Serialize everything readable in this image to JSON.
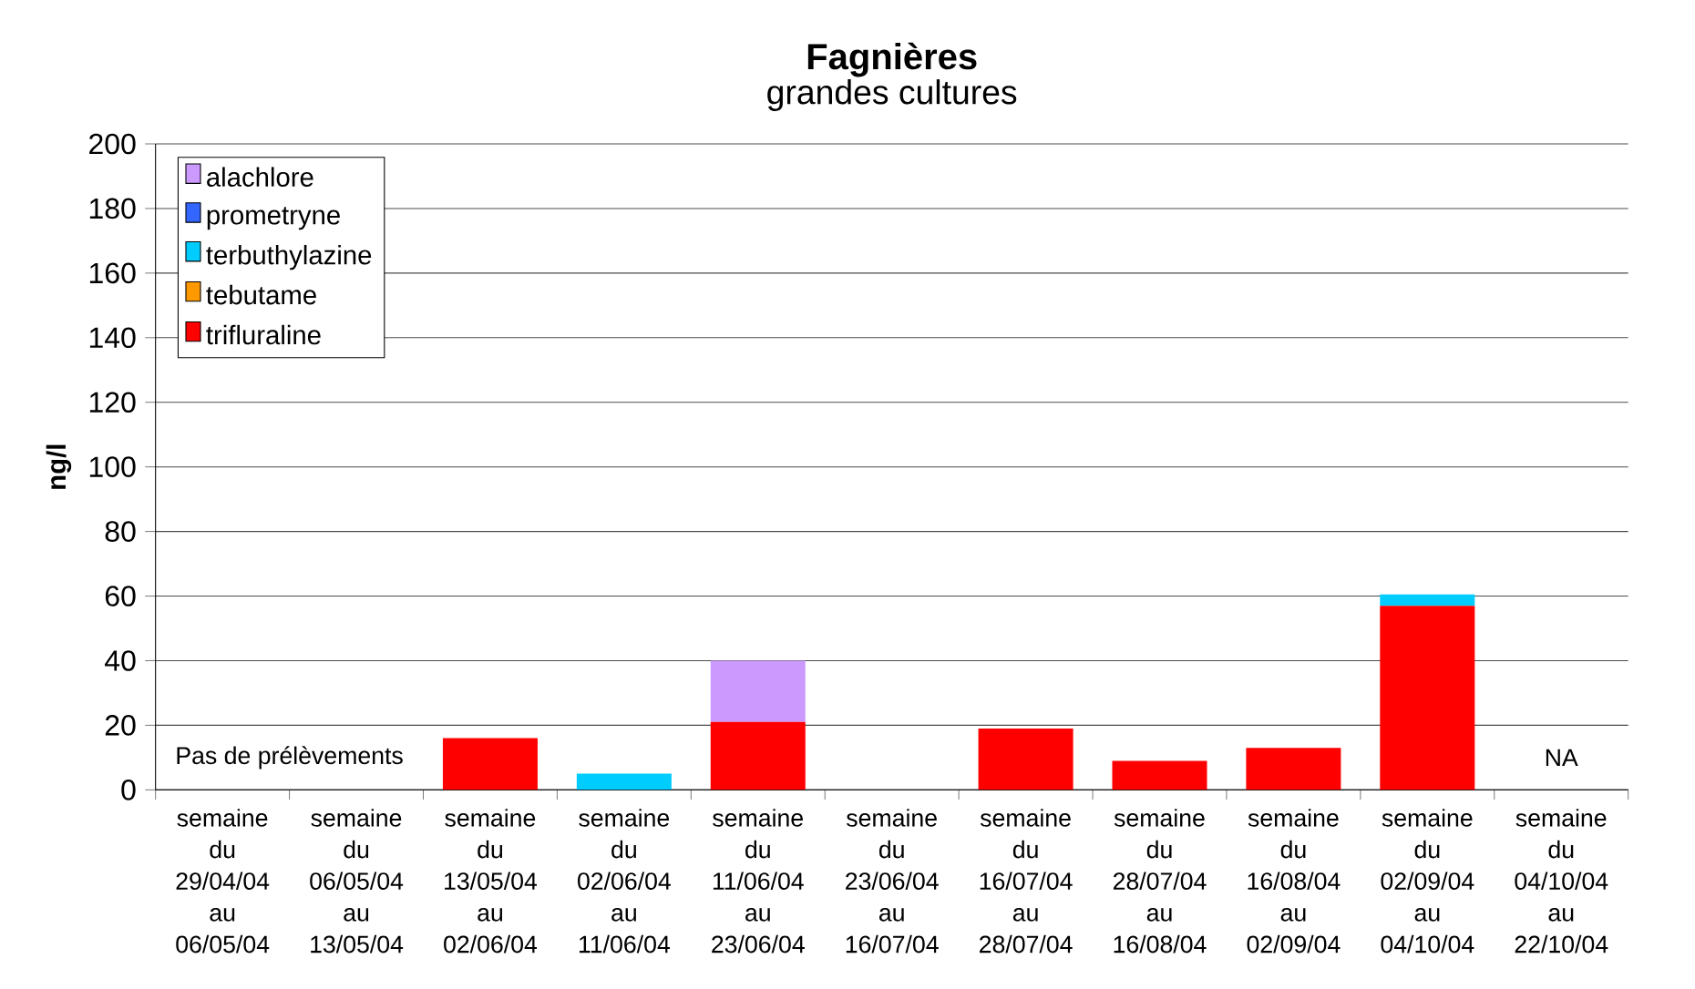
{
  "chart_data": {
    "type": "bar",
    "stacked": true,
    "title": "Fagnières",
    "subtitle": "grandes cultures",
    "ylabel": "ng/l",
    "categories": [
      "semaine du 29/04/04 au 06/05/04",
      "semaine du 06/05/04 au 13/05/04",
      "semaine du 13/05/04 au 02/06/04",
      "semaine du 02/06/04 au 11/06/04",
      "semaine du 11/06/04 au 23/06/04",
      "semaine du 23/06/04 au 16/07/04",
      "semaine du 16/07/04 au 28/07/04",
      "semaine du 28/07/04 au 16/08/04",
      "semaine du 16/08/04 au 02/09/04",
      "semaine du 02/09/04 au 04/10/04",
      "semaine du 04/10/04 au 22/10/04"
    ],
    "series": [
      {
        "name": "trifluraline",
        "color": "#ff0000",
        "values": [
          null,
          null,
          16,
          0,
          21,
          0,
          19,
          9,
          13,
          57,
          null
        ]
      },
      {
        "name": "tebutame",
        "color": "#ff9900",
        "values": [
          null,
          null,
          0,
          0,
          0,
          0,
          0,
          0,
          0,
          0,
          null
        ]
      },
      {
        "name": "terbuthylazine",
        "color": "#00ccff",
        "values": [
          null,
          null,
          0,
          5,
          0,
          0,
          0,
          0,
          0,
          3.5,
          null
        ]
      },
      {
        "name": "prometryne",
        "color": "#3366ff",
        "values": [
          null,
          null,
          0,
          0,
          0,
          0,
          0,
          0,
          0,
          0,
          null
        ]
      },
      {
        "name": "alachlore",
        "color": "#cc99ff",
        "values": [
          null,
          null,
          0,
          0,
          19,
          0,
          0,
          0,
          0,
          0,
          null
        ]
      }
    ],
    "ylim": [
      0,
      200
    ],
    "yticks": [
      0,
      20,
      40,
      60,
      80,
      100,
      120,
      140,
      160,
      180,
      200
    ],
    "grid": "y",
    "legend": "top left",
    "annotations": [
      "Pas de prélèvements",
      "NA"
    ]
  }
}
